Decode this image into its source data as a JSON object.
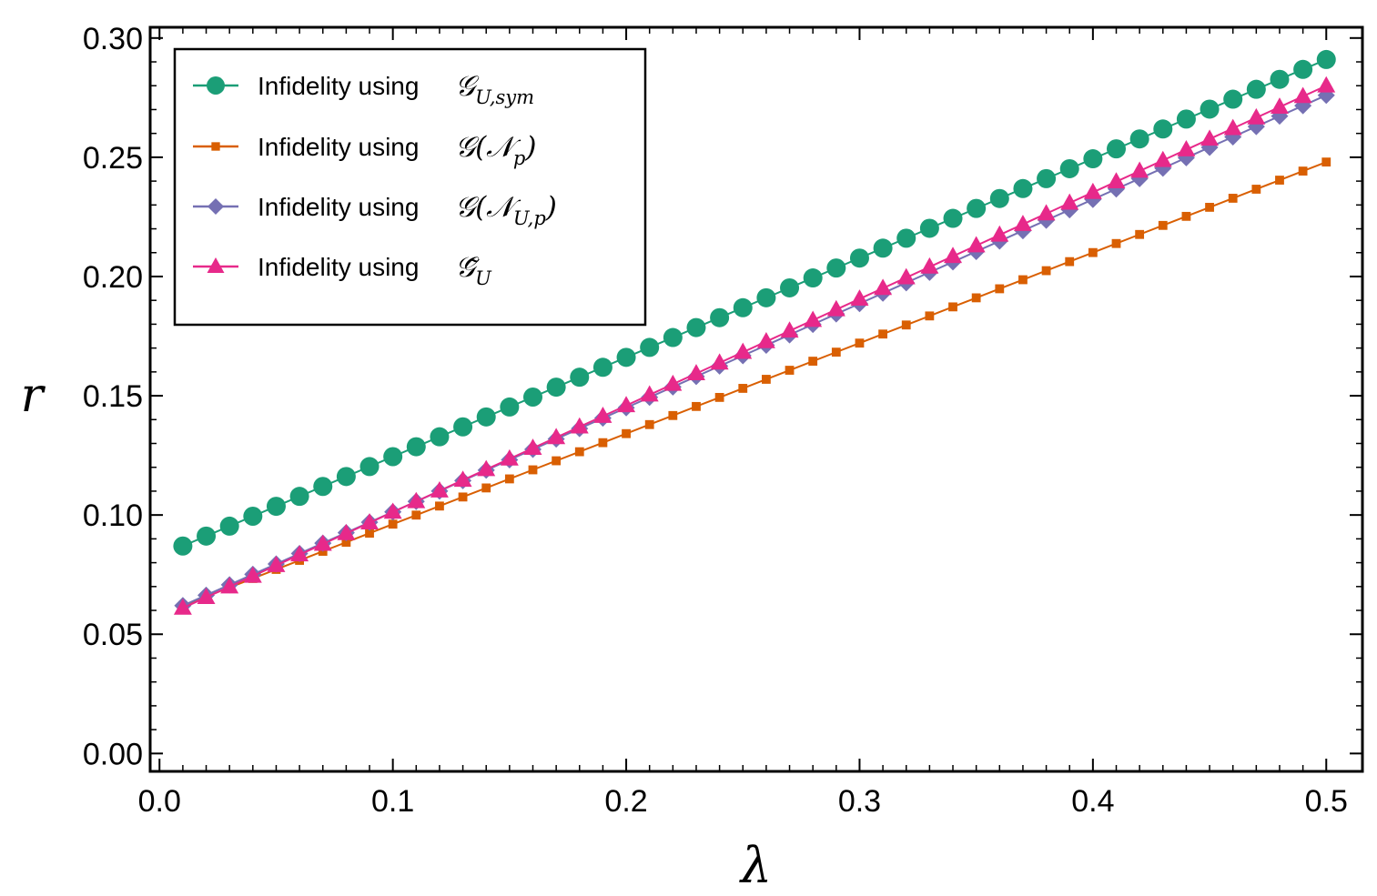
{
  "chart_data": {
    "type": "scatter",
    "title": "",
    "xlabel": "λ",
    "ylabel": "r",
    "xlim": [
      0.0,
      0.5
    ],
    "ylim": [
      0.0,
      0.3
    ],
    "grid": false,
    "legend_position": "top-left",
    "x_ticks": [
      "0.0",
      "0.1",
      "0.2",
      "0.3",
      "0.4",
      "0.5"
    ],
    "y_ticks": [
      "0.00",
      "0.05",
      "0.10",
      "0.15",
      "0.20",
      "0.25",
      "0.30"
    ],
    "series": [
      {
        "name": "Infidelity using 𝒢U,sym",
        "label_prefix": "Infidelity using",
        "math": "𝒢",
        "math_sub": "U,sym",
        "marker": "circle",
        "color": "#1b9e77",
        "x_start": 0.01,
        "x_end": 0.5,
        "x_step": 0.01,
        "y_start": 0.087,
        "y_end": 0.291
      },
      {
        "name": "Infidelity using 𝒢(𝒩p)",
        "label_prefix": "Infidelity using",
        "math": "𝒢(𝒩",
        "math_sub": "p",
        "math_suffix": ")",
        "marker": "square",
        "color": "#d95f02",
        "x_start": 0.01,
        "x_end": 0.5,
        "x_step": 0.01,
        "y_start": 0.062,
        "y_end": 0.248
      },
      {
        "name": "Infidelity using 𝒢(𝒩U,p)",
        "label_prefix": "Infidelity using",
        "math": "𝒢(𝒩",
        "math_sub": "U,p",
        "math_suffix": ")",
        "marker": "diamond",
        "color": "#7570b3",
        "x_start": 0.01,
        "x_end": 0.5,
        "x_step": 0.01,
        "y_start": 0.062,
        "y_end": 0.276
      },
      {
        "name": "Infidelity using 𝒢̃U",
        "label_prefix": "Infidelity using",
        "math": "𝒢̃",
        "math_sub": "U",
        "marker": "triangle",
        "color": "#e7298a",
        "x_start": 0.01,
        "x_end": 0.5,
        "x_step": 0.01,
        "y_start": 0.061,
        "y_end": 0.28
      }
    ]
  }
}
